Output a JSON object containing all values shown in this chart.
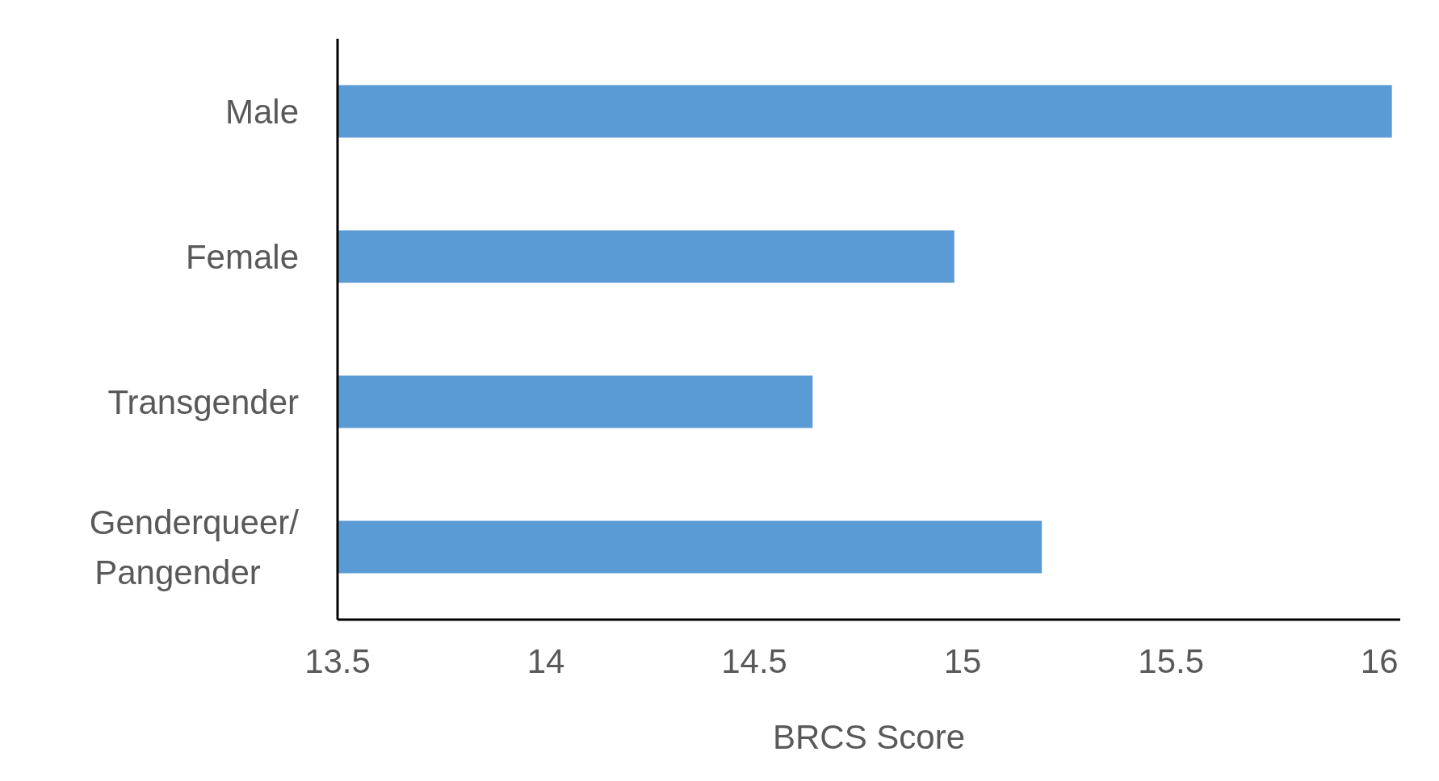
{
  "chart_data": {
    "type": "bar",
    "orientation": "horizontal",
    "xlabel": "BRCS Score",
    "categories": [
      "Male",
      "Female",
      "Transgender",
      "Genderqueer/ Pangender"
    ],
    "values": [
      16.03,
      14.98,
      14.64,
      15.19
    ],
    "color": "#5b9bd5",
    "xlim": [
      13.5,
      16.05
    ],
    "xticks": [
      13.5,
      14,
      14.5,
      15,
      15.5,
      16
    ],
    "grid": false,
    "legend": false
  }
}
